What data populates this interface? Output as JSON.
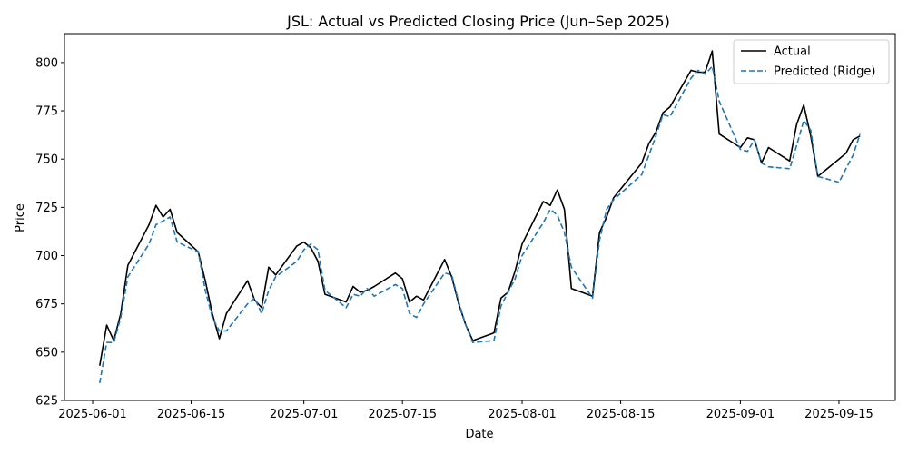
{
  "chart_data": {
    "type": "line",
    "title": "JSL: Actual vs Predicted Closing Price (Jun–Sep 2025)",
    "xlabel": "Date",
    "ylabel": "Price",
    "xlim": [
      "2025-05-28",
      "2025-09-23"
    ],
    "ylim": [
      625,
      815
    ],
    "xticks": [
      "2025-06-01",
      "2025-06-15",
      "2025-07-01",
      "2025-07-15",
      "2025-08-01",
      "2025-08-15",
      "2025-09-01",
      "2025-09-15"
    ],
    "yticks": [
      625,
      650,
      675,
      700,
      725,
      750,
      775,
      800
    ],
    "grid": false,
    "legend_position": "top-right",
    "series": [
      {
        "name": "Actual",
        "color": "#000000",
        "style": "solid",
        "points": [
          [
            "2025-06-02",
            643
          ],
          [
            "2025-06-03",
            664
          ],
          [
            "2025-06-04",
            656
          ],
          [
            "2025-06-05",
            670
          ],
          [
            "2025-06-06",
            695
          ],
          [
            "2025-06-09",
            716
          ],
          [
            "2025-06-10",
            726
          ],
          [
            "2025-06-11",
            720
          ],
          [
            "2025-06-12",
            724
          ],
          [
            "2025-06-13",
            712
          ],
          [
            "2025-06-16",
            702
          ],
          [
            "2025-06-17",
            687
          ],
          [
            "2025-06-18",
            670
          ],
          [
            "2025-06-19",
            657
          ],
          [
            "2025-06-20",
            670
          ],
          [
            "2025-06-23",
            687
          ],
          [
            "2025-06-24",
            677
          ],
          [
            "2025-06-25",
            673
          ],
          [
            "2025-06-26",
            694
          ],
          [
            "2025-06-27",
            690
          ],
          [
            "2025-06-30",
            705
          ],
          [
            "2025-07-01",
            707
          ],
          [
            "2025-07-02",
            704
          ],
          [
            "2025-07-03",
            697
          ],
          [
            "2025-07-04",
            680
          ],
          [
            "2025-07-07",
            676
          ],
          [
            "2025-07-08",
            684
          ],
          [
            "2025-07-09",
            681
          ],
          [
            "2025-07-10",
            682
          ],
          [
            "2025-07-11",
            684
          ],
          [
            "2025-07-14",
            691
          ],
          [
            "2025-07-15",
            688
          ],
          [
            "2025-07-16",
            676
          ],
          [
            "2025-07-17",
            679
          ],
          [
            "2025-07-18",
            677
          ],
          [
            "2025-07-21",
            698
          ],
          [
            "2025-07-22",
            689
          ],
          [
            "2025-07-23",
            675
          ],
          [
            "2025-07-24",
            664
          ],
          [
            "2025-07-25",
            656
          ],
          [
            "2025-07-28",
            660
          ],
          [
            "2025-07-29",
            678
          ],
          [
            "2025-07-30",
            681
          ],
          [
            "2025-07-31",
            692
          ],
          [
            "2025-08-01",
            706
          ],
          [
            "2025-08-04",
            728
          ],
          [
            "2025-08-05",
            726
          ],
          [
            "2025-08-06",
            734
          ],
          [
            "2025-08-07",
            724
          ],
          [
            "2025-08-08",
            683
          ],
          [
            "2025-08-11",
            679
          ],
          [
            "2025-08-12",
            712
          ],
          [
            "2025-08-13",
            720
          ],
          [
            "2025-08-14",
            730
          ],
          [
            "2025-08-18",
            748
          ],
          [
            "2025-08-19",
            758
          ],
          [
            "2025-08-20",
            764
          ],
          [
            "2025-08-21",
            774
          ],
          [
            "2025-08-22",
            777
          ],
          [
            "2025-08-25",
            796
          ],
          [
            "2025-08-26",
            795
          ],
          [
            "2025-08-27",
            795
          ],
          [
            "2025-08-28",
            806
          ],
          [
            "2025-08-29",
            763
          ],
          [
            "2025-09-01",
            756
          ],
          [
            "2025-09-02",
            761
          ],
          [
            "2025-09-03",
            760
          ],
          [
            "2025-09-04",
            748
          ],
          [
            "2025-09-05",
            756
          ],
          [
            "2025-09-08",
            749
          ],
          [
            "2025-09-09",
            768
          ],
          [
            "2025-09-10",
            778
          ],
          [
            "2025-09-11",
            762
          ],
          [
            "2025-09-12",
            741
          ],
          [
            "2025-09-15",
            750
          ],
          [
            "2025-09-16",
            753
          ],
          [
            "2025-09-17",
            760
          ],
          [
            "2025-09-18",
            762
          ]
        ]
      },
      {
        "name": "Predicted (Ridge)",
        "color": "#1f77b4",
        "style": "dashed",
        "points": [
          [
            "2025-06-02",
            634
          ],
          [
            "2025-06-03",
            655
          ],
          [
            "2025-06-04",
            655
          ],
          [
            "2025-06-05",
            668
          ],
          [
            "2025-06-06",
            689
          ],
          [
            "2025-06-09",
            706
          ],
          [
            "2025-06-10",
            716
          ],
          [
            "2025-06-11",
            718
          ],
          [
            "2025-06-12",
            720
          ],
          [
            "2025-06-13",
            707
          ],
          [
            "2025-06-16",
            702
          ],
          [
            "2025-06-17",
            682
          ],
          [
            "2025-06-18",
            668
          ],
          [
            "2025-06-19",
            661
          ],
          [
            "2025-06-20",
            661
          ],
          [
            "2025-06-23",
            675
          ],
          [
            "2025-06-24",
            678
          ],
          [
            "2025-06-25",
            670
          ],
          [
            "2025-06-26",
            682
          ],
          [
            "2025-06-27",
            689
          ],
          [
            "2025-06-30",
            697
          ],
          [
            "2025-07-01",
            703
          ],
          [
            "2025-07-02",
            706
          ],
          [
            "2025-07-03",
            703
          ],
          [
            "2025-07-04",
            682
          ],
          [
            "2025-07-07",
            673
          ],
          [
            "2025-07-08",
            680
          ],
          [
            "2025-07-09",
            679
          ],
          [
            "2025-07-10",
            683
          ],
          [
            "2025-07-11",
            679
          ],
          [
            "2025-07-14",
            685
          ],
          [
            "2025-07-15",
            683
          ],
          [
            "2025-07-16",
            670
          ],
          [
            "2025-07-17",
            668
          ],
          [
            "2025-07-18",
            675
          ],
          [
            "2025-07-21",
            691
          ],
          [
            "2025-07-22",
            690
          ],
          [
            "2025-07-23",
            676
          ],
          [
            "2025-07-24",
            664
          ],
          [
            "2025-07-25",
            655
          ],
          [
            "2025-07-28",
            656
          ],
          [
            "2025-07-29",
            674
          ],
          [
            "2025-07-30",
            681
          ],
          [
            "2025-07-31",
            688
          ],
          [
            "2025-08-01",
            700
          ],
          [
            "2025-08-04",
            717
          ],
          [
            "2025-08-05",
            724
          ],
          [
            "2025-08-06",
            721
          ],
          [
            "2025-08-07",
            712
          ],
          [
            "2025-08-08",
            694
          ],
          [
            "2025-08-11",
            678
          ],
          [
            "2025-08-12",
            708
          ],
          [
            "2025-08-13",
            724
          ],
          [
            "2025-08-14",
            729
          ],
          [
            "2025-08-18",
            742
          ],
          [
            "2025-08-19",
            752
          ],
          [
            "2025-08-20",
            762
          ],
          [
            "2025-08-21",
            773
          ],
          [
            "2025-08-22",
            772
          ],
          [
            "2025-08-25",
            792
          ],
          [
            "2025-08-26",
            796
          ],
          [
            "2025-08-27",
            794
          ],
          [
            "2025-08-28",
            798
          ],
          [
            "2025-08-29",
            780
          ],
          [
            "2025-09-01",
            755
          ],
          [
            "2025-09-02",
            754
          ],
          [
            "2025-09-03",
            760
          ],
          [
            "2025-09-04",
            748
          ],
          [
            "2025-09-05",
            746
          ],
          [
            "2025-09-08",
            745
          ],
          [
            "2025-09-09",
            757
          ],
          [
            "2025-09-10",
            770
          ],
          [
            "2025-09-11",
            765
          ],
          [
            "2025-09-12",
            741
          ],
          [
            "2025-09-15",
            738
          ],
          [
            "2025-09-16",
            745
          ],
          [
            "2025-09-17",
            752
          ],
          [
            "2025-09-18",
            763
          ]
        ]
      }
    ]
  }
}
